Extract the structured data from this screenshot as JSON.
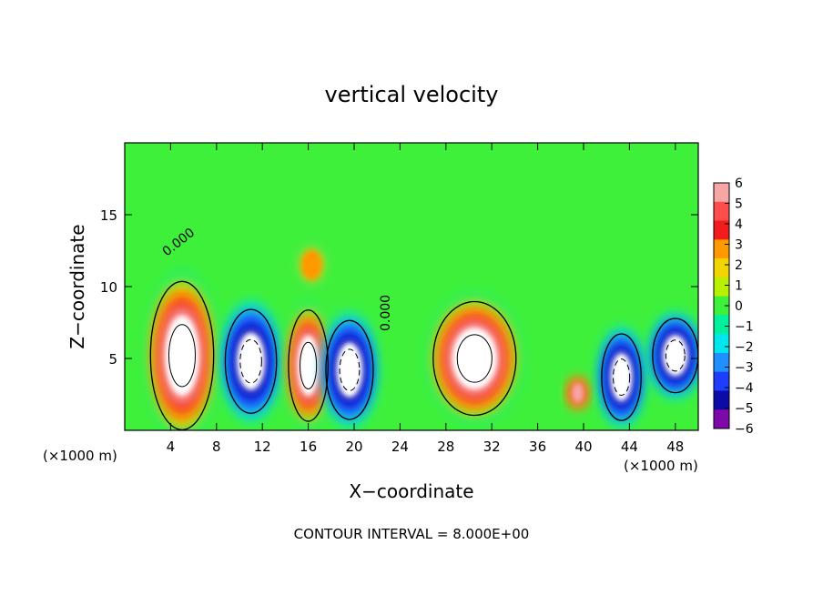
{
  "chart_data": {
    "type": "heatmap",
    "title": "vertical velocity",
    "xlabel": "X−coordinate",
    "ylabel": "Z−coordinate",
    "x_unit": "(×1000 m)",
    "x_unit_right": "(×1000 m)",
    "xlim": [
      0,
      50
    ],
    "ylim": [
      0,
      20
    ],
    "x_ticks": [
      4,
      8,
      12,
      16,
      20,
      24,
      28,
      32,
      36,
      40,
      44,
      48
    ],
    "y_ticks": [
      5,
      10,
      15
    ],
    "zero_contour_label": "0.000",
    "footer": "CONTOUR INTERVAL = 8.000E+00",
    "colorbar": {
      "ticks": [
        6,
        5,
        4,
        3,
        2,
        1,
        0,
        -1,
        -2,
        -3,
        -4,
        -5,
        -6
      ],
      "tick_labels": [
        "6",
        "5",
        "4",
        "3",
        "2",
        "1",
        "0",
        "−1",
        "−2",
        "−3",
        "−4",
        "−5",
        "−6"
      ],
      "colors": [
        "#f7a6a6",
        "#ff4d4d",
        "#f21c1c",
        "#ff9900",
        "#f2d400",
        "#b8f000",
        "#3cf03c",
        "#00f09e",
        "#00e6ee",
        "#1e90ff",
        "#1f3dff",
        "#0b0ba8",
        "#7d0aa8"
      ]
    },
    "features": [
      {
        "kind": "updraft",
        "x": 5.0,
        "z": 5.2,
        "rx": 3.2,
        "rz": 6.0,
        "peak": ">6"
      },
      {
        "kind": "downdraft",
        "x": 11.0,
        "z": 4.8,
        "rx": 2.6,
        "rz": 4.2,
        "peak": "<-6"
      },
      {
        "kind": "updraft",
        "x": 16.0,
        "z": 4.5,
        "rx": 2.0,
        "rz": 4.5,
        "peak": ">6"
      },
      {
        "kind": "updraft",
        "x": 16.3,
        "z": 11.5,
        "rx": 1.2,
        "rz": 1.4,
        "peak": "3"
      },
      {
        "kind": "downdraft",
        "x": 19.6,
        "z": 4.2,
        "rx": 2.4,
        "rz": 4.0,
        "peak": "<-6"
      },
      {
        "kind": "updraft",
        "x": 30.5,
        "z": 5.0,
        "rx": 4.2,
        "rz": 4.6,
        "peak": ">6"
      },
      {
        "kind": "updraft",
        "x": 39.5,
        "z": 2.6,
        "rx": 1.0,
        "rz": 1.3,
        "peak": "4"
      },
      {
        "kind": "downdraft",
        "x": 43.3,
        "z": 3.7,
        "rx": 2.0,
        "rz": 3.5,
        "peak": "<-6"
      },
      {
        "kind": "downdraft",
        "x": 48.0,
        "z": 5.2,
        "rx": 2.3,
        "rz": 3.0,
        "peak": "<-6"
      }
    ]
  }
}
